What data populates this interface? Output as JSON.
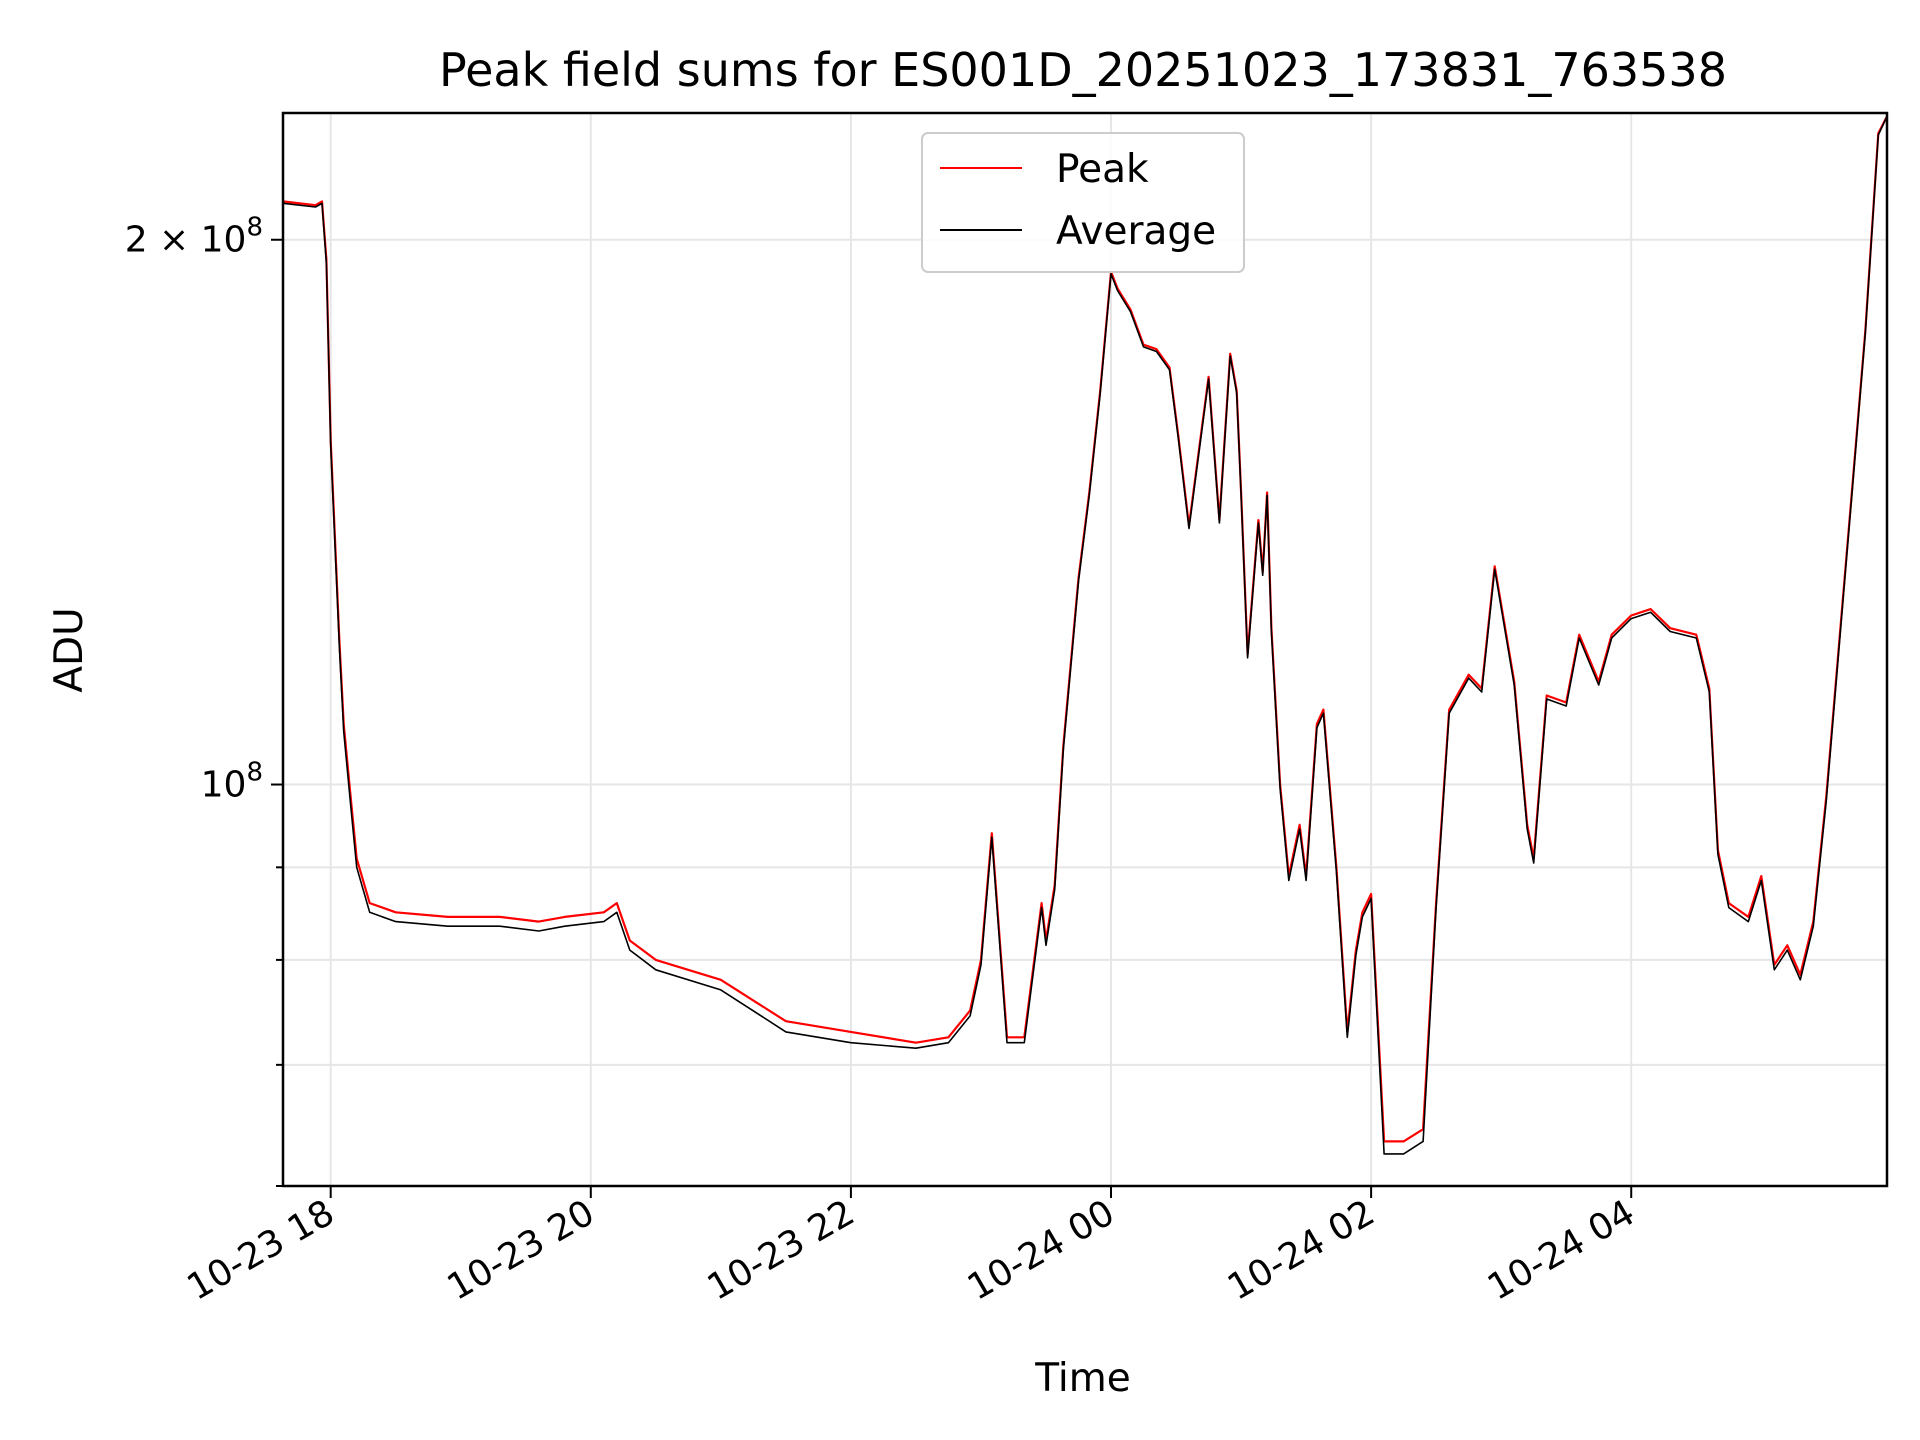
{
  "chart_data": {
    "type": "line",
    "title": "Peak field sums for ES001D_20251023_173831_763538",
    "xlabel": "Time",
    "ylabel": "ADU",
    "y_scale": "log",
    "ylim": [
      60000000,
      235000000
    ],
    "xlim": [
      "2025-10-23 17:38",
      "2025-10-24 05:58"
    ],
    "grid": true,
    "legend_position": "upper-center",
    "x_ticks": [
      {
        "t": "2025-10-23 18:00",
        "label": "10-23 18"
      },
      {
        "t": "2025-10-23 20:00",
        "label": "10-23 20"
      },
      {
        "t": "2025-10-23 22:00",
        "label": "10-23 22"
      },
      {
        "t": "2025-10-24 00:00",
        "label": "10-24 00"
      },
      {
        "t": "2025-10-24 02:00",
        "label": "10-24 02"
      },
      {
        "t": "2025-10-24 04:00",
        "label": "10-24 04"
      }
    ],
    "y_major_ticks": [
      {
        "value": 100000000,
        "label": "10",
        "exp": "8",
        "prefix": ""
      },
      {
        "value": 200000000,
        "label": "10",
        "exp": "8",
        "prefix": "2 × "
      }
    ],
    "y_minor_ticks": [
      60000000,
      70000000,
      80000000,
      90000000
    ],
    "x": [
      "2025-10-23 17:38",
      "2025-10-23 17:53",
      "2025-10-23 17:56",
      "2025-10-23 17:58",
      "2025-10-23 18:00",
      "2025-10-23 18:04",
      "2025-10-23 18:06",
      "2025-10-23 18:09",
      "2025-10-23 18:12",
      "2025-10-23 18:18",
      "2025-10-23 18:30",
      "2025-10-23 18:54",
      "2025-10-23 19:18",
      "2025-10-23 19:36",
      "2025-10-23 19:48",
      "2025-10-23 20:06",
      "2025-10-23 20:12",
      "2025-10-23 20:18",
      "2025-10-23 20:30",
      "2025-10-23 21:00",
      "2025-10-23 21:30",
      "2025-10-23 22:00",
      "2025-10-23 22:30",
      "2025-10-23 22:45",
      "2025-10-23 22:55",
      "2025-10-23 23:00",
      "2025-10-23 23:05",
      "2025-10-23 23:12",
      "2025-10-23 23:20",
      "2025-10-23 23:28",
      "2025-10-23 23:30",
      "2025-10-23 23:34",
      "2025-10-23 23:38",
      "2025-10-23 23:45",
      "2025-10-23 23:50",
      "2025-10-23 23:55",
      "2025-10-24 00:00",
      "2025-10-24 00:03",
      "2025-10-24 00:09",
      "2025-10-24 00:15",
      "2025-10-24 00:21",
      "2025-10-24 00:27",
      "2025-10-24 00:31",
      "2025-10-24 00:36",
      "2025-10-24 00:45",
      "2025-10-24 00:50",
      "2025-10-24 00:55",
      "2025-10-24 00:58",
      "2025-10-24 01:00",
      "2025-10-24 01:03",
      "2025-10-24 01:08",
      "2025-10-24 01:10",
      "2025-10-24 01:12",
      "2025-10-24 01:14",
      "2025-10-24 01:18",
      "2025-10-24 01:22",
      "2025-10-24 01:27",
      "2025-10-24 01:30",
      "2025-10-24 01:35",
      "2025-10-24 01:38",
      "2025-10-24 01:44",
      "2025-10-24 01:49",
      "2025-10-24 01:53",
      "2025-10-24 01:56",
      "2025-10-24 02:00",
      "2025-10-24 02:06",
      "2025-10-24 02:15",
      "2025-10-24 02:24",
      "2025-10-24 02:30",
      "2025-10-24 02:36",
      "2025-10-24 02:45",
      "2025-10-24 02:51",
      "2025-10-24 02:57",
      "2025-10-24 03:06",
      "2025-10-24 03:12",
      "2025-10-24 03:15",
      "2025-10-24 03:21",
      "2025-10-24 03:30",
      "2025-10-24 03:36",
      "2025-10-24 03:45",
      "2025-10-24 03:51",
      "2025-10-24 04:00",
      "2025-10-24 04:09",
      "2025-10-24 04:18",
      "2025-10-24 04:30",
      "2025-10-24 04:36",
      "2025-10-24 04:40",
      "2025-10-24 04:45",
      "2025-10-24 04:54",
      "2025-10-24 05:00",
      "2025-10-24 05:06",
      "2025-10-24 05:12",
      "2025-10-24 05:18",
      "2025-10-24 05:24",
      "2025-10-24 05:30",
      "2025-10-24 05:36",
      "2025-10-24 05:42",
      "2025-10-24 05:48",
      "2025-10-24 05:54",
      "2025-10-24 05:58"
    ],
    "series": [
      {
        "name": "Peak",
        "color": "#ff0000",
        "values": [
          210000000,
          209000000,
          210000000,
          195000000,
          155000000,
          120000000,
          108000000,
          99000000,
          91000000,
          86000000,
          85000000,
          84500000,
          84500000,
          84000000,
          84500000,
          85000000,
          86000000,
          82000000,
          80000000,
          78000000,
          74000000,
          73000000,
          72000000,
          72500000,
          75000000,
          80000000,
          94000000,
          72500000,
          72500000,
          86000000,
          82000000,
          88000000,
          105000000,
          130000000,
          145000000,
          165000000,
          192000000,
          188000000,
          183000000,
          175000000,
          174000000,
          170000000,
          156000000,
          139000000,
          168000000,
          140000000,
          173000000,
          165000000,
          145000000,
          118000000,
          140000000,
          131000000,
          145000000,
          122000000,
          100000000,
          89000000,
          95000000,
          89000000,
          108000000,
          110000000,
          90000000,
          73000000,
          81000000,
          85000000,
          87000000,
          63500000,
          63500000,
          64500000,
          86000000,
          110000000,
          115000000,
          113000000,
          132000000,
          114000000,
          95000000,
          91000000,
          112000000,
          111000000,
          121000000,
          114000000,
          121000000,
          124000000,
          125000000,
          122000000,
          121000000,
          113000000,
          92000000,
          86000000,
          84500000,
          89000000,
          79500000,
          81500000,
          78500000,
          84000000,
          98500000,
          120000000,
          146000000,
          178000000,
          229000000,
          234000000
        ]
      },
      {
        "name": "Average",
        "color": "#000000",
        "values": [
          209500000,
          208500000,
          209500000,
          194000000,
          154000000,
          119000000,
          107000000,
          98000000,
          90000000,
          85000000,
          84000000,
          83500000,
          83500000,
          83000000,
          83500000,
          84000000,
          85000000,
          81000000,
          79000000,
          77000000,
          73000000,
          72000000,
          71500000,
          72000000,
          74500000,
          79500000,
          93500000,
          72000000,
          72000000,
          85500000,
          81500000,
          87500000,
          104500000,
          129500000,
          144500000,
          164500000,
          191500000,
          187500000,
          182500000,
          174500000,
          173500000,
          169500000,
          155500000,
          138500000,
          167500000,
          139500000,
          172500000,
          164500000,
          144500000,
          117500000,
          139500000,
          130500000,
          144500000,
          121500000,
          99500000,
          88500000,
          94500000,
          88500000,
          107500000,
          109500000,
          89500000,
          72500000,
          80500000,
          84500000,
          86500000,
          62500000,
          62500000,
          63500000,
          85500000,
          109500000,
          114500000,
          112500000,
          131500000,
          113500000,
          94500000,
          90500000,
          111500000,
          110500000,
          120500000,
          113500000,
          120500000,
          123500000,
          124500000,
          121500000,
          120500000,
          112500000,
          91500000,
          85500000,
          84000000,
          88500000,
          79000000,
          81000000,
          78000000,
          83500000,
          98000000,
          119500000,
          145500000,
          177500000,
          228500000,
          234000000
        ]
      }
    ]
  }
}
